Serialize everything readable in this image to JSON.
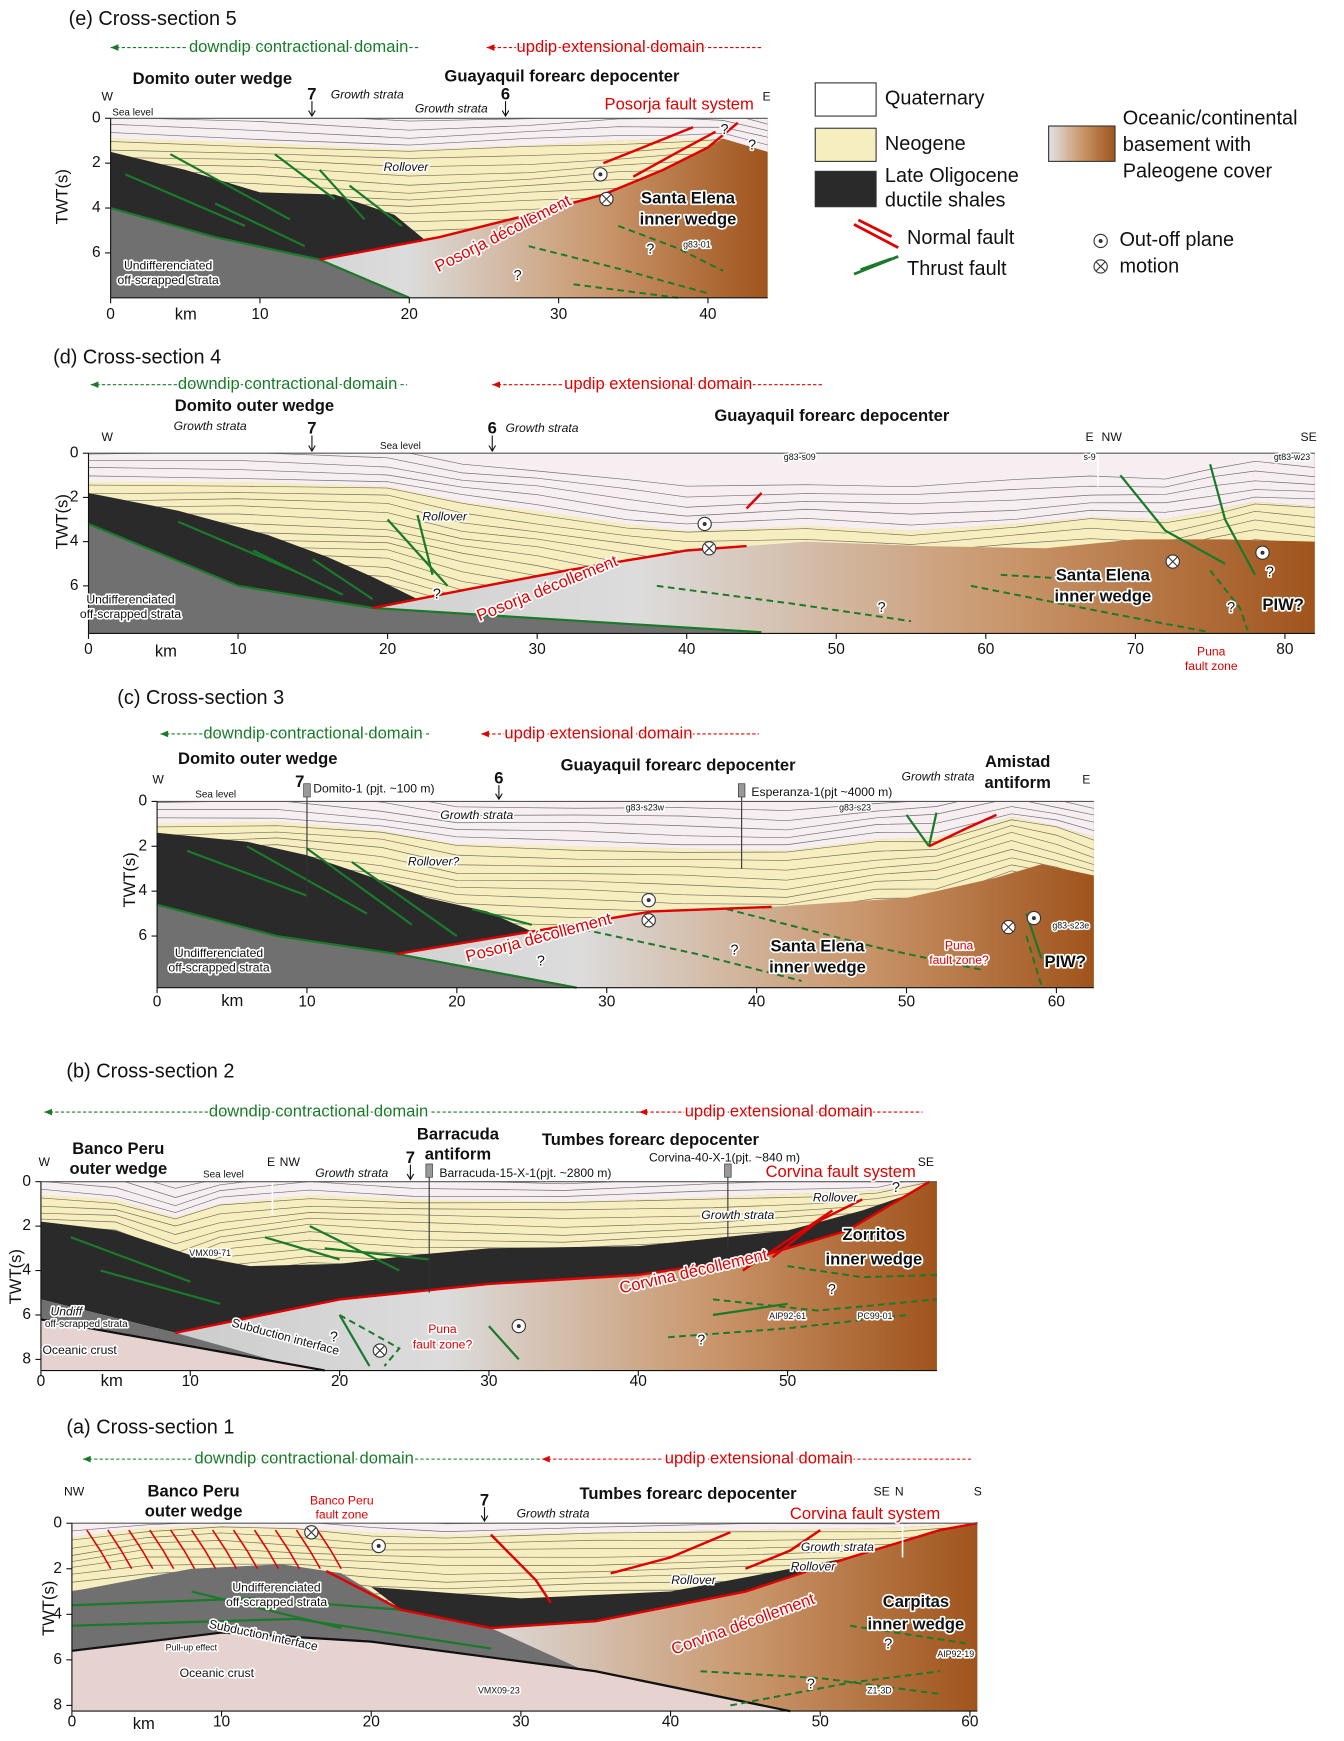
{
  "legend": {
    "labels": [
      "Quaternary",
      "Neogene",
      "Late Oligocene",
      "ductile shales",
      "Normal fault",
      "Thrust fault",
      "Oceanic/continental",
      "basement with",
      "Paleogene cover",
      "Out-off plane",
      "motion"
    ]
  },
  "panels": [
    {
      "title": "(e) Cross-section 5",
      "downdip": "downdip contractional domain",
      "updip": "updip extensional domain",
      "y_label": "TWT(s)",
      "x_label": "km",
      "xticks": [
        0,
        10,
        20,
        30,
        40
      ],
      "yticks": [
        0,
        2,
        4,
        6
      ],
      "labels": [
        "W",
        "E",
        "Sea level",
        "Domito outer wedge",
        "Guayaquil forearc depocenter",
        "7",
        "6",
        "Growth strata",
        "Growth strata",
        "Posorja fault system",
        "Rollover",
        "Santa Elena",
        "inner wedge",
        "Posorja décollement",
        "g83-01",
        "Undifferenciated",
        "off-scrapped strata",
        "?",
        "?",
        "?",
        "?"
      ]
    },
    {
      "title": "(d) Cross-section 4",
      "downdip": "downdip contractional domain",
      "updip": "updip extensional domain",
      "y_label": "TWT(s)",
      "x_label": "km",
      "xticks": [
        0,
        10,
        20,
        30,
        40,
        50,
        60,
        70,
        80
      ],
      "yticks": [
        0,
        2,
        4,
        6
      ],
      "labels": [
        "W",
        "E",
        "NW",
        "SE",
        "Sea level",
        "Domito outer wedge",
        "Growth strata",
        "7",
        "6",
        "Growth strata",
        "Guayaquil forearc depocenter",
        "g83-s09",
        "s-9",
        "gt83-w23",
        "Rollover",
        "Posorja décollement",
        "Santa Elena",
        "inner wedge",
        "PIW?",
        "Puna",
        "fault zone",
        "Undifferenciated",
        "off-scrapped strata",
        "?",
        "?",
        "?",
        "?"
      ]
    },
    {
      "title": "(c) Cross-section 3",
      "downdip": "downdip contractional domain",
      "updip": "updip extensional domain",
      "y_label": "TWT(s)",
      "x_label": "km",
      "xticks": [
        0,
        10,
        20,
        30,
        40,
        50,
        60
      ],
      "yticks": [
        0,
        2,
        4,
        6
      ],
      "labels": [
        "W",
        "E",
        "Sea level",
        "Domito outer wedge",
        "7",
        "Domito-1 (pjt. ~100 m)",
        "6",
        "Guayaquil forearc depocenter",
        "Esperanza-1(pjt ~4000 m)",
        "Growth strata",
        "Amistad",
        "antiform",
        "g83-s23w",
        "g83-s23",
        "Growth strata",
        "Rollover?",
        "Posorja décollement",
        "Santa Elena",
        "inner wedge",
        "Puna",
        "fault zone?",
        "PIW?",
        "g83-s23e",
        "Undifferenciated",
        "off-scrapped strata",
        "?",
        "?"
      ]
    },
    {
      "title": "(b) Cross-section 2",
      "downdip": "downdip contractional domain",
      "updip": "updip extensional domain",
      "y_label": "TWT(s)",
      "x_label": "km",
      "xticks": [
        0,
        10,
        20,
        30,
        40,
        50
      ],
      "yticks": [
        0,
        2,
        4,
        6,
        8
      ],
      "labels": [
        "W",
        "Banco Peru",
        "outer wedge",
        "Sea level",
        "E",
        "NW",
        "Growth strata",
        "Barracuda",
        "antiform",
        "7",
        "Barracuda-15-X-1(pjt. ~2800 m)",
        "Tumbes forearc depocenter",
        "Corvina-40-X-1(pjt. ~840 m)",
        "Corvina fault system",
        "SE",
        "Rollover",
        "Growth strata",
        "Zorritos",
        "inner wedge",
        "VMX09-71",
        "Corvina décollement",
        "AIP92-61",
        "PC99-01",
        "Undiff",
        "off-scrapped strata",
        "Subduction interface",
        "Oceanic crust",
        "Puna",
        "fault zone?",
        "?",
        "?",
        "?",
        "?"
      ]
    },
    {
      "title": "(a) Cross-section 1",
      "downdip": "downdip contractional domain",
      "updip": "updip extensional domain",
      "y_label": "TWT(s)",
      "x_label": "km",
      "xticks": [
        0,
        10,
        20,
        30,
        40,
        50,
        60
      ],
      "yticks": [
        0,
        2,
        4,
        6,
        8
      ],
      "labels": [
        "NW",
        "Banco Peru",
        "outer wedge",
        "Banco Peru",
        "fault zone",
        "7",
        "Growth strata",
        "Tumbes forearc depocenter",
        "SE",
        "N",
        "S",
        "Corvina fault system",
        "Growth strata",
        "Rollover",
        "Rollover",
        "Undifferenciated",
        "off-scrapped strata",
        "Corvina décollement",
        "Carpitas",
        "inner wedge",
        "Subduction interface",
        "Pull-up effect",
        "Oceanic crust",
        "VMX09-23",
        "AIP92-19",
        "Z1-3D",
        "?",
        "?"
      ]
    }
  ]
}
